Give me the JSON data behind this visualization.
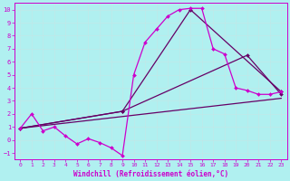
{
  "xlabel": "Windchill (Refroidissement éolien,°C)",
  "bg_color": "#b0f0f0",
  "grid_color": "#d0ffff",
  "line_color": "#cc00cc",
  "line_color2": "#660066",
  "xlim": [
    -0.5,
    23.5
  ],
  "ylim": [
    -1.5,
    10.5
  ],
  "xticks": [
    0,
    1,
    2,
    3,
    4,
    5,
    6,
    7,
    8,
    9,
    10,
    11,
    12,
    13,
    14,
    15,
    16,
    17,
    18,
    19,
    20,
    21,
    22,
    23
  ],
  "yticks": [
    -1,
    0,
    1,
    2,
    3,
    4,
    5,
    6,
    7,
    8,
    9,
    10
  ],
  "series1_x": [
    0,
    1,
    2,
    3,
    4,
    5,
    6,
    7,
    8,
    9,
    10,
    11,
    12,
    13,
    14,
    15,
    16,
    17,
    18,
    19,
    20,
    21,
    22,
    23
  ],
  "series1_y": [
    0.9,
    2.0,
    0.7,
    1.0,
    0.3,
    -0.3,
    0.1,
    -0.2,
    -0.6,
    -1.2,
    5.0,
    7.5,
    8.5,
    9.5,
    10.0,
    10.1,
    10.1,
    7.0,
    6.6,
    4.0,
    3.8,
    3.5,
    3.5,
    3.7
  ],
  "series2_x": [
    0,
    9,
    15,
    23
  ],
  "series2_y": [
    0.9,
    2.2,
    10.0,
    3.7
  ],
  "series3_x": [
    0,
    9,
    20,
    23
  ],
  "series3_y": [
    0.9,
    2.2,
    6.5,
    3.5
  ],
  "series4_x": [
    0,
    23
  ],
  "series4_y": [
    0.9,
    3.2
  ]
}
